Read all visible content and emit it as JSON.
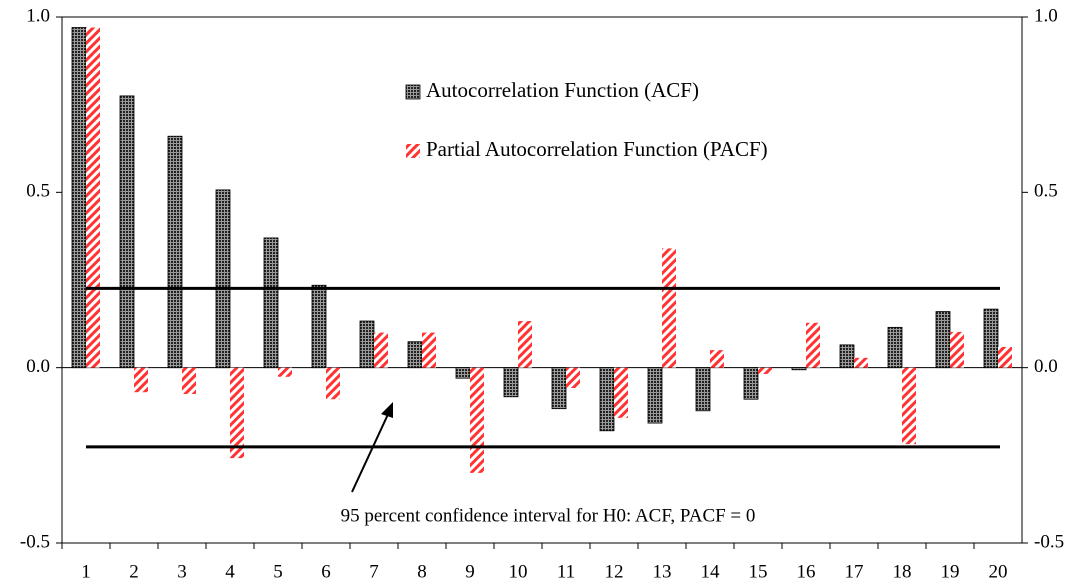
{
  "chart_data": {
    "type": "bar",
    "categories": [
      "1",
      "2",
      "3",
      "4",
      "5",
      "6",
      "7",
      "8",
      "9",
      "10",
      "11",
      "12",
      "13",
      "14",
      "15",
      "16",
      "17",
      "18",
      "19",
      "20"
    ],
    "series": [
      {
        "name": "Autocorrelation Function (ACF)",
        "color": "#404040",
        "values": [
          0.97,
          0.775,
          0.66,
          0.507,
          0.37,
          0.235,
          0.133,
          0.074,
          -0.03,
          -0.083,
          -0.117,
          -0.18,
          -0.158,
          -0.123,
          -0.09,
          -0.006,
          0.065,
          0.115,
          0.16,
          0.167
        ]
      },
      {
        "name": "Partial Autocorrelation Function (PACF)",
        "color": "#ff3333",
        "values": [
          0.97,
          -0.07,
          -0.075,
          -0.258,
          -0.026,
          -0.09,
          0.1,
          0.1,
          -0.3,
          0.133,
          -0.058,
          -0.143,
          0.34,
          0.05,
          -0.018,
          0.128,
          0.028,
          -0.218,
          0.102,
          0.059
        ]
      }
    ],
    "reference_lines": [
      0.226,
      -0.226
    ],
    "annotation": "95 percent confidence interval for H0: ACF, PACF = 0",
    "ylim": [
      -0.5,
      1.0
    ],
    "yticks": [
      {
        "value": -0.5,
        "label": "-0.5"
      },
      {
        "value": 0,
        "label": "0.0"
      },
      {
        "value": 0.5,
        "label": "0.5"
      },
      {
        "value": 1.0,
        "label": "1.0"
      }
    ],
    "y2lim": [
      -0.5,
      1.0
    ],
    "y2ticks": [
      {
        "value": -0.5,
        "label": "-0.5"
      },
      {
        "value": 0,
        "label": "0.0"
      },
      {
        "value": 0.5,
        "label": "0.5"
      },
      {
        "value": 1.0,
        "label": "1.0"
      }
    ],
    "legend": "top"
  }
}
